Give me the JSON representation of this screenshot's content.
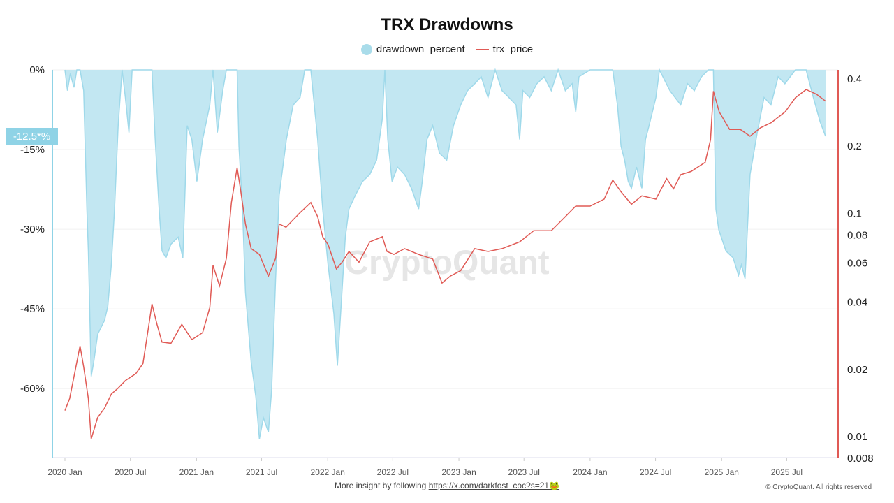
{
  "chart_data": {
    "type": "area+line",
    "title": "TRX Drawdowns",
    "legend_position": "top",
    "grid": true,
    "watermark": "CryptoQuant",
    "x_ticks": [
      "2020 Jan",
      "2020 Jul",
      "2021 Jan",
      "2021 Jul",
      "2022 Jan",
      "2022 Jul",
      "2023 Jan",
      "2023 Jul",
      "2024 Jan",
      "2024 Jul",
      "2025 Jan",
      "2025 Jul"
    ],
    "x_tick_dates": [
      "2020-01-01",
      "2020-07-01",
      "2021-01-01",
      "2021-07-01",
      "2022-01-01",
      "2022-07-01",
      "2023-01-01",
      "2023-07-01",
      "2024-01-01",
      "2024-07-01",
      "2025-01-01",
      "2025-07-01"
    ],
    "xlim": [
      "2019-11-27",
      "2025-11-21"
    ],
    "y_left": {
      "ticks": [
        0,
        -15,
        -30,
        -45,
        -60
      ],
      "tick_labels": [
        "0%",
        "-15%",
        "-30%",
        "-45%",
        "-60%"
      ],
      "ylim": [
        -73,
        0
      ],
      "color": "#8fd3e6"
    },
    "y_right": {
      "scale": "log",
      "ticks": [
        0.4,
        0.2,
        0.1,
        0.08,
        0.06,
        0.04,
        0.02,
        0.01,
        0.008
      ],
      "tick_labels": [
        "0.4",
        "0.2",
        "0.1",
        "0.08",
        "0.06",
        "0.04",
        "0.02",
        "0.01",
        "0.008"
      ],
      "ylim": [
        0.008,
        0.436
      ],
      "color": "#e05a55"
    },
    "current_marker": "-12.5*%",
    "series": [
      {
        "name": "drawdown_percent",
        "kind": "area",
        "color": "#bfe6f1",
        "stroke": "#9fd9ea",
        "axis": "left",
        "x": [
          "2020-01-01",
          "2020-01-08",
          "2020-01-16",
          "2020-01-26",
          "2020-02-03",
          "2020-02-12",
          "2020-02-22",
          "2020-03-02",
          "2020-03-06",
          "2020-03-14",
          "2020-03-21",
          "2020-04-01",
          "2020-04-20",
          "2020-04-29",
          "2020-05-09",
          "2020-05-18",
          "2020-05-28",
          "2020-06-08",
          "2020-06-17",
          "2020-06-27",
          "2020-07-06",
          "2020-07-16",
          "2020-08-05",
          "2020-08-20",
          "2020-08-30",
          "2020-09-08",
          "2020-09-19",
          "2020-09-27",
          "2020-10-08",
          "2020-10-22",
          "2020-11-11",
          "2020-11-24",
          "2020-12-06",
          "2020-12-19",
          "2021-01-02",
          "2021-01-18",
          "2021-02-07",
          "2021-02-16",
          "2021-02-28",
          "2021-03-15",
          "2021-03-25",
          "2021-04-08",
          "2021-04-24",
          "2021-04-29",
          "2021-05-09",
          "2021-05-17",
          "2021-06-02",
          "2021-06-15",
          "2021-06-25",
          "2021-07-06",
          "2021-07-20",
          "2021-07-29",
          "2021-08-09",
          "2021-08-19",
          "2021-09-08",
          "2021-09-27",
          "2021-10-16",
          "2021-10-29",
          "2021-11-15",
          "2021-12-04",
          "2021-12-18",
          "2022-01-02",
          "2022-01-18",
          "2022-01-28",
          "2022-02-07",
          "2022-02-19",
          "2022-03-01",
          "2022-03-19",
          "2022-04-08",
          "2022-04-28",
          "2022-05-17",
          "2022-06-02",
          "2022-06-09",
          "2022-06-17",
          "2022-06-29",
          "2022-07-14",
          "2022-08-03",
          "2022-08-22",
          "2022-09-11",
          "2022-09-21",
          "2022-10-04",
          "2022-10-20",
          "2022-11-08",
          "2022-11-28",
          "2022-12-17",
          "2023-01-06",
          "2023-01-25",
          "2023-02-14",
          "2023-03-04",
          "2023-03-23",
          "2023-04-12",
          "2023-05-01",
          "2023-05-20",
          "2023-06-09",
          "2023-06-19",
          "2023-06-28",
          "2023-07-17",
          "2023-08-06",
          "2023-08-26",
          "2023-09-15",
          "2023-10-04",
          "2023-10-24",
          "2023-11-12",
          "2023-11-22",
          "2023-12-01",
          "2024-01-01",
          "2024-01-29",
          "2024-03-04",
          "2024-03-17",
          "2024-03-27",
          "2024-04-06",
          "2024-04-16",
          "2024-04-25",
          "2024-05-09",
          "2024-05-24",
          "2024-06-03",
          "2024-06-13",
          "2024-07-02",
          "2024-07-12",
          "2024-08-10",
          "2024-09-09",
          "2024-09-28",
          "2024-10-17",
          "2024-11-06",
          "2024-11-25",
          "2024-12-09",
          "2024-12-16",
          "2024-12-24",
          "2025-01-13",
          "2025-02-02",
          "2025-02-17",
          "2025-02-25",
          "2025-03-07",
          "2025-03-21",
          "2025-04-10",
          "2025-04-29",
          "2025-05-18",
          "2025-06-07",
          "2025-06-26",
          "2025-07-25",
          "2025-08-24",
          "2025-09-13",
          "2025-10-02",
          "2025-10-17"
        ],
        "values": [
          0,
          -3.9,
          -0.7,
          -3.3,
          0,
          0,
          -3.9,
          -26.2,
          -34.1,
          -57.7,
          -55.0,
          -49.8,
          -47.2,
          -44.6,
          -36.7,
          -26.2,
          -10.5,
          0,
          -5.2,
          -11.8,
          0,
          0,
          0,
          0,
          0,
          -13.1,
          -26.2,
          -34.1,
          -35.4,
          -32.8,
          -31.5,
          -35.4,
          -10.5,
          -13.1,
          -21.0,
          -13.1,
          -6.6,
          0,
          -11.8,
          -3.9,
          0,
          0,
          0,
          -14.4,
          -26.2,
          -41.9,
          -55.0,
          -61.6,
          -69.5,
          -65.5,
          -68.2,
          -60.3,
          -39.3,
          -23.6,
          -13.1,
          -6.6,
          -5.2,
          0,
          0,
          -13.1,
          -26.2,
          -36.7,
          -45.9,
          -55.7,
          -44.6,
          -31.5,
          -26.2,
          -23.6,
          -21.0,
          -19.7,
          -17.0,
          -9.2,
          0,
          -13.1,
          -21.0,
          -18.3,
          -19.7,
          -22.3,
          -26.2,
          -21.0,
          -13.1,
          -10.5,
          -15.7,
          -17.0,
          -10.5,
          -6.6,
          -3.9,
          -2.6,
          -1.3,
          -5.2,
          0,
          -3.9,
          -5.2,
          -6.6,
          -13.1,
          -3.9,
          -5.2,
          -2.6,
          -1.3,
          -3.9,
          0,
          -3.9,
          -2.6,
          -7.9,
          -1.3,
          0,
          0,
          0,
          -6.6,
          -14.4,
          -17.0,
          -21.0,
          -22.3,
          -18.3,
          -22.3,
          -13.1,
          -10.5,
          -5.2,
          0,
          -3.9,
          -6.6,
          -2.6,
          -3.9,
          -1.3,
          0,
          0,
          -26.2,
          -30.1,
          -34.1,
          -35.4,
          -38.7,
          -36.7,
          -39.3,
          -19.7,
          -11.8,
          -5.2,
          -6.6,
          -1.3,
          -2.6,
          0,
          0,
          -5.2,
          -9.8,
          -12.5
        ]
      },
      {
        "name": "trx_price",
        "kind": "line",
        "color": "#e05a55",
        "axis": "right",
        "x": [
          "2020-01-01",
          "2020-01-14",
          "2020-01-24",
          "2020-02-12",
          "2020-02-22",
          "2020-03-06",
          "2020-03-14",
          "2020-04-01",
          "2020-04-20",
          "2020-05-09",
          "2020-05-28",
          "2020-06-17",
          "2020-07-16",
          "2020-08-05",
          "2020-08-20",
          "2020-08-30",
          "2020-09-13",
          "2020-09-27",
          "2020-10-22",
          "2020-11-21",
          "2020-12-19",
          "2021-01-18",
          "2021-02-07",
          "2021-02-16",
          "2021-03-06",
          "2021-03-25",
          "2021-04-08",
          "2021-04-24",
          "2021-05-03",
          "2021-05-17",
          "2021-06-02",
          "2021-06-25",
          "2021-07-20",
          "2021-08-09",
          "2021-08-19",
          "2021-09-07",
          "2021-09-27",
          "2021-10-16",
          "2021-11-15",
          "2021-12-04",
          "2021-12-18",
          "2022-01-02",
          "2022-01-25",
          "2022-02-10",
          "2022-03-01",
          "2022-03-29",
          "2022-04-28",
          "2022-06-02",
          "2022-06-15",
          "2022-07-04",
          "2022-08-03",
          "2022-09-11",
          "2022-10-20",
          "2022-11-15",
          "2022-12-08",
          "2023-01-06",
          "2023-02-14",
          "2023-03-23",
          "2023-05-01",
          "2023-06-19",
          "2023-07-28",
          "2023-09-15",
          "2023-10-24",
          "2023-11-22",
          "2024-01-01",
          "2024-02-09",
          "2024-03-04",
          "2024-03-27",
          "2024-04-25",
          "2024-05-24",
          "2024-07-02",
          "2024-08-01",
          "2024-08-20",
          "2024-09-09",
          "2024-10-08",
          "2024-11-16",
          "2024-12-01",
          "2024-12-09",
          "2024-12-25",
          "2025-01-23",
          "2025-02-22",
          "2025-03-21",
          "2025-04-19",
          "2025-05-19",
          "2025-06-27",
          "2025-07-25",
          "2025-08-24",
          "2025-09-22",
          "2025-10-17"
        ],
        "values": [
          0.013,
          0.0147,
          0.0177,
          0.0253,
          0.0204,
          0.0147,
          0.0097,
          0.0121,
          0.0133,
          0.0154,
          0.0164,
          0.0177,
          0.019,
          0.0211,
          0.0303,
          0.039,
          0.0316,
          0.0263,
          0.026,
          0.0316,
          0.027,
          0.029,
          0.0376,
          0.058,
          0.047,
          0.0624,
          0.111,
          0.159,
          0.128,
          0.089,
          0.069,
          0.065,
          0.052,
          0.0624,
          0.089,
          0.086,
          0.093,
          0.1,
          0.111,
          0.096,
          0.078,
          0.072,
          0.056,
          0.06,
          0.067,
          0.06,
          0.074,
          0.078,
          0.067,
          0.065,
          0.069,
          0.065,
          0.062,
          0.0484,
          0.052,
          0.055,
          0.069,
          0.067,
          0.069,
          0.074,
          0.083,
          0.083,
          0.096,
          0.107,
          0.107,
          0.115,
          0.14,
          0.124,
          0.109,
          0.119,
          0.115,
          0.142,
          0.128,
          0.148,
          0.153,
          0.168,
          0.212,
          0.35,
          0.283,
          0.236,
          0.236,
          0.22,
          0.24,
          0.253,
          0.283,
          0.327,
          0.356,
          0.339,
          0.316
        ]
      }
    ]
  },
  "footer": {
    "prefix": "More insight by following ",
    "link": "https://x.com/darkfost_coc?s=21🐸",
    "copyright": "© CryptoQuant. All rights reserved"
  }
}
